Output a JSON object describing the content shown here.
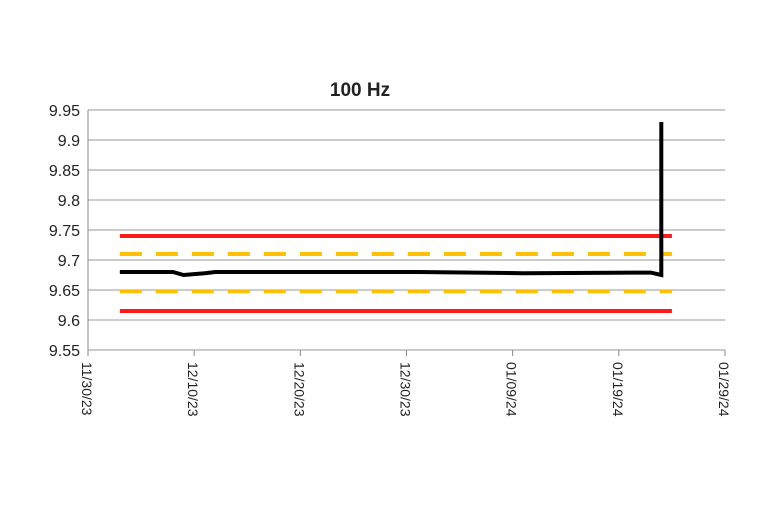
{
  "chart_data": {
    "type": "line",
    "title": "100 Hz",
    "xlim": [
      "11/30/23",
      "01/29/24"
    ],
    "xticks": [
      "11/30/23",
      "12/10/23",
      "12/20/23",
      "12/30/23",
      "01/09/24",
      "01/19/24",
      "01/29/24"
    ],
    "ylim": [
      9.55,
      9.95
    ],
    "yticks": [
      9.55,
      9.6,
      9.65,
      9.7,
      9.75,
      9.8,
      9.85,
      9.9,
      9.95
    ],
    "grid": true,
    "series": [
      {
        "color": "#ff1a1a",
        "dash": false,
        "x": [
          "12/03/23",
          "01/24/24"
        ],
        "values": [
          9.74,
          9.74
        ]
      },
      {
        "color": "#ff1a1a",
        "dash": false,
        "x": [
          "12/03/23",
          "01/24/24"
        ],
        "values": [
          9.615,
          9.615
        ]
      },
      {
        "color": "#ffc000",
        "dash": true,
        "x": [
          "12/03/23",
          "01/24/24"
        ],
        "values": [
          9.71,
          9.71
        ]
      },
      {
        "color": "#ffc000",
        "dash": true,
        "x": [
          "12/03/23",
          "01/24/24"
        ],
        "values": [
          9.648,
          9.648
        ]
      },
      {
        "color": "#000000",
        "dash": false,
        "x": [
          "12/03/23",
          "12/08/23",
          "12/09/23",
          "12/11/23",
          "12/12/23",
          "12/31/23",
          "01/10/24",
          "01/22/24",
          "01/23/24",
          "01/23/24"
        ],
        "values": [
          9.68,
          9.68,
          9.675,
          9.678,
          9.68,
          9.68,
          9.678,
          9.679,
          9.675,
          9.93
        ]
      }
    ]
  }
}
